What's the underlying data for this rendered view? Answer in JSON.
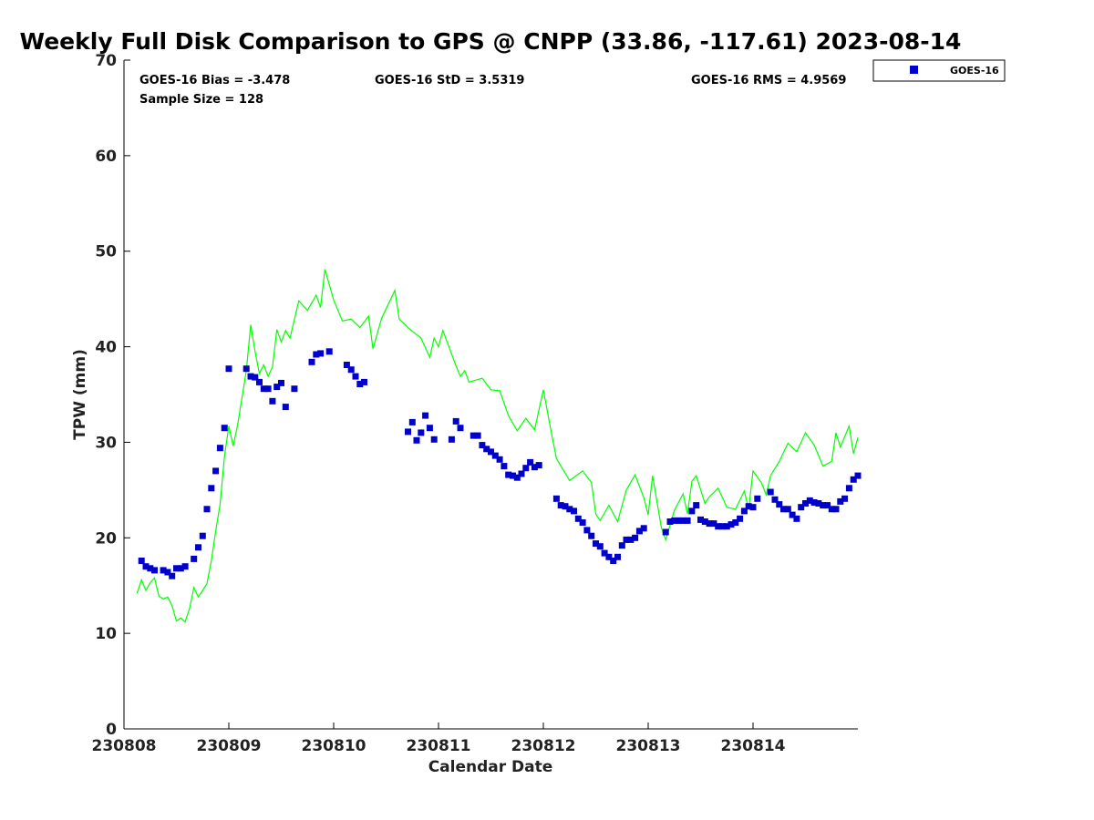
{
  "chart_data": {
    "type": "line",
    "title": "Weekly Full Disk Comparison to GPS @ CNPP (33.86, -117.61) 2023-08-14",
    "xlabel": "Calendar Date",
    "ylabel": "TPW (mm)",
    "xlim": [
      "2023-08-08",
      "2023-08-15"
    ],
    "ylim": [
      0,
      70
    ],
    "x_tick_labels": [
      "230808",
      "230809",
      "230810",
      "230811",
      "230812",
      "230813",
      "230814"
    ],
    "y_tick_labels": [
      "0",
      "10",
      "20",
      "30",
      "40",
      "50",
      "60",
      "70"
    ],
    "grid": false,
    "legend_position": "top-right outside",
    "stats": {
      "bias": "GOES-16 Bias = -3.478",
      "std": "GOES-16 StD = 3.5319",
      "rms": "GOES-16 RMS = 4.9569",
      "sample": "Sample Size = 128"
    },
    "series": [
      {
        "name": "",
        "style": "line",
        "color": "#00ff00",
        "points": [
          [
            "2023-08-08T03:00",
            14.2
          ],
          [
            "2023-08-08T04:00",
            15.6
          ],
          [
            "2023-08-08T05:00",
            14.5
          ],
          [
            "2023-08-08T06:00",
            15.3
          ],
          [
            "2023-08-08T07:00",
            15.8
          ],
          [
            "2023-08-08T08:00",
            13.9
          ],
          [
            "2023-08-08T09:00",
            13.6
          ],
          [
            "2023-08-08T10:00",
            13.8
          ],
          [
            "2023-08-08T11:00",
            12.9
          ],
          [
            "2023-08-08T12:00",
            11.3
          ],
          [
            "2023-08-08T13:00",
            11.6
          ],
          [
            "2023-08-08T14:00",
            11.2
          ],
          [
            "2023-08-08T15:00",
            12.6
          ],
          [
            "2023-08-08T16:00",
            14.8
          ],
          [
            "2023-08-08T17:00",
            13.8
          ],
          [
            "2023-08-08T18:00",
            14.5
          ],
          [
            "2023-08-08T19:00",
            15.2
          ],
          [
            "2023-08-08T20:00",
            17.6
          ],
          [
            "2023-08-08T21:00",
            20.7
          ],
          [
            "2023-08-08T22:00",
            23.5
          ],
          [
            "2023-08-08T23:00",
            28.5
          ],
          [
            "2023-08-09T00:00",
            31.7
          ],
          [
            "2023-08-09T01:00",
            29.6
          ],
          [
            "2023-08-09T02:00",
            31.8
          ],
          [
            "2023-08-09T04:00",
            37.5
          ],
          [
            "2023-08-09T05:00",
            42.3
          ],
          [
            "2023-08-09T06:00",
            39.5
          ],
          [
            "2023-08-09T07:00",
            37.2
          ],
          [
            "2023-08-09T08:00",
            38.1
          ],
          [
            "2023-08-09T09:00",
            36.9
          ],
          [
            "2023-08-09T10:00",
            37.9
          ],
          [
            "2023-08-09T11:00",
            41.8
          ],
          [
            "2023-08-09T12:00",
            40.5
          ],
          [
            "2023-08-09T13:00",
            41.7
          ],
          [
            "2023-08-09T14:00",
            40.9
          ],
          [
            "2023-08-09T16:00",
            44.8
          ],
          [
            "2023-08-09T18:00",
            43.8
          ],
          [
            "2023-08-09T20:00",
            45.4
          ],
          [
            "2023-08-09T21:00",
            44.1
          ],
          [
            "2023-08-09T22:00",
            48.1
          ],
          [
            "2023-08-10T00:00",
            44.9
          ],
          [
            "2023-08-10T02:00",
            42.7
          ],
          [
            "2023-08-10T04:00",
            42.9
          ],
          [
            "2023-08-10T06:00",
            42.0
          ],
          [
            "2023-08-10T08:00",
            43.2
          ],
          [
            "2023-08-10T09:00",
            39.8
          ],
          [
            "2023-08-10T11:00",
            43.0
          ],
          [
            "2023-08-10T14:00",
            45.9
          ],
          [
            "2023-08-10T15:00",
            42.9
          ],
          [
            "2023-08-10T17:00",
            42.0
          ],
          [
            "2023-08-10T20:00",
            40.9
          ],
          [
            "2023-08-10T22:00",
            38.9
          ],
          [
            "2023-08-10T23:00",
            40.9
          ],
          [
            "2023-08-11T00:00",
            40.0
          ],
          [
            "2023-08-11T01:00",
            41.7
          ],
          [
            "2023-08-11T04:00",
            38.0
          ],
          [
            "2023-08-11T05:00",
            36.9
          ],
          [
            "2023-08-11T06:00",
            37.5
          ],
          [
            "2023-08-11T07:00",
            36.3
          ],
          [
            "2023-08-11T10:00",
            36.7
          ],
          [
            "2023-08-11T12:00",
            35.5
          ],
          [
            "2023-08-11T14:00",
            35.4
          ],
          [
            "2023-08-11T16:00",
            32.8
          ],
          [
            "2023-08-11T18:00",
            31.2
          ],
          [
            "2023-08-11T20:00",
            32.5
          ],
          [
            "2023-08-11T22:00",
            31.3
          ],
          [
            "2023-08-12T00:00",
            35.5
          ],
          [
            "2023-08-12T02:00",
            30.6
          ],
          [
            "2023-08-12T03:00",
            28.3
          ],
          [
            "2023-08-12T06:00",
            26.0
          ],
          [
            "2023-08-12T09:00",
            27.0
          ],
          [
            "2023-08-12T11:00",
            25.8
          ],
          [
            "2023-08-12T12:00",
            22.5
          ],
          [
            "2023-08-12T13:00",
            21.8
          ],
          [
            "2023-08-12T15:00",
            23.4
          ],
          [
            "2023-08-12T17:00",
            21.7
          ],
          [
            "2023-08-12T19:00",
            25.0
          ],
          [
            "2023-08-12T21:00",
            26.6
          ],
          [
            "2023-08-12T23:00",
            24.2
          ],
          [
            "2023-08-13T00:00",
            22.4
          ],
          [
            "2023-08-13T01:00",
            26.5
          ],
          [
            "2023-08-13T03:00",
            21.1
          ],
          [
            "2023-08-13T04:00",
            19.8
          ],
          [
            "2023-08-13T06:00",
            22.9
          ],
          [
            "2023-08-13T08:00",
            24.6
          ],
          [
            "2023-08-13T09:00",
            22.5
          ],
          [
            "2023-08-13T10:00",
            25.9
          ],
          [
            "2023-08-13T11:00",
            26.5
          ],
          [
            "2023-08-13T13:00",
            23.6
          ],
          [
            "2023-08-13T14:00",
            24.3
          ],
          [
            "2023-08-13T16:00",
            25.2
          ],
          [
            "2023-08-13T18:00",
            23.2
          ],
          [
            "2023-08-13T20:00",
            23.0
          ],
          [
            "2023-08-13T22:00",
            24.9
          ],
          [
            "2023-08-13T23:00",
            23.0
          ],
          [
            "2023-08-14T00:00",
            27.0
          ],
          [
            "2023-08-14T02:00",
            25.7
          ],
          [
            "2023-08-14T03:00",
            24.5
          ],
          [
            "2023-08-14T04:00",
            26.5
          ],
          [
            "2023-08-14T06:00",
            28.0
          ],
          [
            "2023-08-14T08:00",
            29.9
          ],
          [
            "2023-08-14T10:00",
            29.0
          ],
          [
            "2023-08-14T12:00",
            31.0
          ],
          [
            "2023-08-14T14:00",
            29.7
          ],
          [
            "2023-08-14T16:00",
            27.5
          ],
          [
            "2023-08-14T18:00",
            28.0
          ],
          [
            "2023-08-14T19:00",
            31.0
          ],
          [
            "2023-08-14T20:00",
            29.5
          ],
          [
            "2023-08-14T22:00",
            31.7
          ],
          [
            "2023-08-14T23:00",
            28.8
          ],
          [
            "2023-08-15T00:00",
            30.5
          ]
        ]
      },
      {
        "name": "GOES-16",
        "style": "square-markers",
        "color": "#0000cc",
        "points": [
          [
            "2023-08-08T04:00",
            17.6
          ],
          [
            "2023-08-08T05:00",
            17.0
          ],
          [
            "2023-08-08T06:00",
            16.8
          ],
          [
            "2023-08-08T07:00",
            16.6
          ],
          [
            "2023-08-08T09:00",
            16.6
          ],
          [
            "2023-08-08T10:00",
            16.4
          ],
          [
            "2023-08-08T11:00",
            16.0
          ],
          [
            "2023-08-08T12:00",
            16.8
          ],
          [
            "2023-08-08T13:00",
            16.8
          ],
          [
            "2023-08-08T14:00",
            17.0
          ],
          [
            "2023-08-08T16:00",
            17.8
          ],
          [
            "2023-08-08T17:00",
            19.0
          ],
          [
            "2023-08-08T18:00",
            20.2
          ],
          [
            "2023-08-08T19:00",
            23.0
          ],
          [
            "2023-08-08T20:00",
            25.2
          ],
          [
            "2023-08-08T21:00",
            27.0
          ],
          [
            "2023-08-08T22:00",
            29.4
          ],
          [
            "2023-08-08T23:00",
            31.5
          ],
          [
            "2023-08-09T00:00",
            37.7
          ],
          [
            "2023-08-09T04:00",
            37.7
          ],
          [
            "2023-08-09T05:00",
            36.9
          ],
          [
            "2023-08-09T06:00",
            36.8
          ],
          [
            "2023-08-09T07:00",
            36.3
          ],
          [
            "2023-08-09T08:00",
            35.6
          ],
          [
            "2023-08-09T09:00",
            35.6
          ],
          [
            "2023-08-09T10:00",
            34.3
          ],
          [
            "2023-08-09T11:00",
            35.8
          ],
          [
            "2023-08-09T12:00",
            36.2
          ],
          [
            "2023-08-09T13:00",
            33.7
          ],
          [
            "2023-08-09T15:00",
            35.6
          ],
          [
            "2023-08-09T19:00",
            38.4
          ],
          [
            "2023-08-09T20:00",
            39.2
          ],
          [
            "2023-08-09T21:00",
            39.3
          ],
          [
            "2023-08-09T23:00",
            39.5
          ],
          [
            "2023-08-10T03:00",
            38.1
          ],
          [
            "2023-08-10T04:00",
            37.6
          ],
          [
            "2023-08-10T05:00",
            36.9
          ],
          [
            "2023-08-10T06:00",
            36.1
          ],
          [
            "2023-08-10T07:00",
            36.3
          ],
          [
            "2023-08-10T17:00",
            31.1
          ],
          [
            "2023-08-10T18:00",
            32.1
          ],
          [
            "2023-08-10T19:00",
            30.2
          ],
          [
            "2023-08-10T20:00",
            31.0
          ],
          [
            "2023-08-10T21:00",
            32.8
          ],
          [
            "2023-08-10T22:00",
            31.5
          ],
          [
            "2023-08-10T23:00",
            30.3
          ],
          [
            "2023-08-11T03:00",
            30.3
          ],
          [
            "2023-08-11T04:00",
            32.2
          ],
          [
            "2023-08-11T05:00",
            31.5
          ],
          [
            "2023-08-11T08:00",
            30.7
          ],
          [
            "2023-08-11T09:00",
            30.7
          ],
          [
            "2023-08-11T10:00",
            29.7
          ],
          [
            "2023-08-11T11:00",
            29.3
          ],
          [
            "2023-08-11T12:00",
            29.0
          ],
          [
            "2023-08-11T13:00",
            28.6
          ],
          [
            "2023-08-11T14:00",
            28.2
          ],
          [
            "2023-08-11T15:00",
            27.5
          ],
          [
            "2023-08-11T16:00",
            26.6
          ],
          [
            "2023-08-11T17:00",
            26.5
          ],
          [
            "2023-08-11T18:00",
            26.3
          ],
          [
            "2023-08-11T19:00",
            26.7
          ],
          [
            "2023-08-11T20:00",
            27.3
          ],
          [
            "2023-08-11T21:00",
            27.9
          ],
          [
            "2023-08-11T22:00",
            27.4
          ],
          [
            "2023-08-11T23:00",
            27.6
          ],
          [
            "2023-08-12T03:00",
            24.1
          ],
          [
            "2023-08-12T04:00",
            23.4
          ],
          [
            "2023-08-12T05:00",
            23.3
          ],
          [
            "2023-08-12T06:00",
            23.0
          ],
          [
            "2023-08-12T07:00",
            22.8
          ],
          [
            "2023-08-12T08:00",
            22.0
          ],
          [
            "2023-08-12T09:00",
            21.6
          ],
          [
            "2023-08-12T10:00",
            20.8
          ],
          [
            "2023-08-12T11:00",
            20.2
          ],
          [
            "2023-08-12T12:00",
            19.4
          ],
          [
            "2023-08-12T13:00",
            19.1
          ],
          [
            "2023-08-12T14:00",
            18.4
          ],
          [
            "2023-08-12T15:00",
            18.0
          ],
          [
            "2023-08-12T16:00",
            17.6
          ],
          [
            "2023-08-12T17:00",
            18.0
          ],
          [
            "2023-08-12T18:00",
            19.2
          ],
          [
            "2023-08-12T19:00",
            19.8
          ],
          [
            "2023-08-12T20:00",
            19.8
          ],
          [
            "2023-08-12T21:00",
            20.0
          ],
          [
            "2023-08-12T22:00",
            20.7
          ],
          [
            "2023-08-12T23:00",
            21.0
          ],
          [
            "2023-08-13T04:00",
            20.6
          ],
          [
            "2023-08-13T05:00",
            21.7
          ],
          [
            "2023-08-13T06:00",
            21.8
          ],
          [
            "2023-08-13T07:00",
            21.8
          ],
          [
            "2023-08-13T08:00",
            21.8
          ],
          [
            "2023-08-13T09:00",
            21.8
          ],
          [
            "2023-08-13T10:00",
            22.8
          ],
          [
            "2023-08-13T11:00",
            23.4
          ],
          [
            "2023-08-13T12:00",
            21.9
          ],
          [
            "2023-08-13T13:00",
            21.7
          ],
          [
            "2023-08-13T14:00",
            21.5
          ],
          [
            "2023-08-13T15:00",
            21.5
          ],
          [
            "2023-08-13T16:00",
            21.2
          ],
          [
            "2023-08-13T17:00",
            21.2
          ],
          [
            "2023-08-13T18:00",
            21.2
          ],
          [
            "2023-08-13T19:00",
            21.4
          ],
          [
            "2023-08-13T20:00",
            21.6
          ],
          [
            "2023-08-13T21:00",
            22.0
          ],
          [
            "2023-08-13T22:00",
            22.8
          ],
          [
            "2023-08-13T23:00",
            23.3
          ],
          [
            "2023-08-14T00:00",
            23.2
          ],
          [
            "2023-08-14T01:00",
            24.1
          ],
          [
            "2023-08-14T04:00",
            24.8
          ],
          [
            "2023-08-14T05:00",
            24.0
          ],
          [
            "2023-08-14T06:00",
            23.5
          ],
          [
            "2023-08-14T07:00",
            23.0
          ],
          [
            "2023-08-14T08:00",
            23.0
          ],
          [
            "2023-08-14T09:00",
            22.4
          ],
          [
            "2023-08-14T10:00",
            22.0
          ],
          [
            "2023-08-14T11:00",
            23.2
          ],
          [
            "2023-08-14T12:00",
            23.6
          ],
          [
            "2023-08-14T13:00",
            23.9
          ],
          [
            "2023-08-14T14:00",
            23.7
          ],
          [
            "2023-08-14T15:00",
            23.6
          ],
          [
            "2023-08-14T16:00",
            23.4
          ],
          [
            "2023-08-14T17:00",
            23.4
          ],
          [
            "2023-08-14T18:00",
            23.0
          ],
          [
            "2023-08-14T19:00",
            23.0
          ],
          [
            "2023-08-14T20:00",
            23.8
          ],
          [
            "2023-08-14T21:00",
            24.1
          ],
          [
            "2023-08-14T22:00",
            25.2
          ],
          [
            "2023-08-14T23:00",
            26.1
          ],
          [
            "2023-08-15T00:00",
            26.5
          ]
        ]
      }
    ]
  }
}
